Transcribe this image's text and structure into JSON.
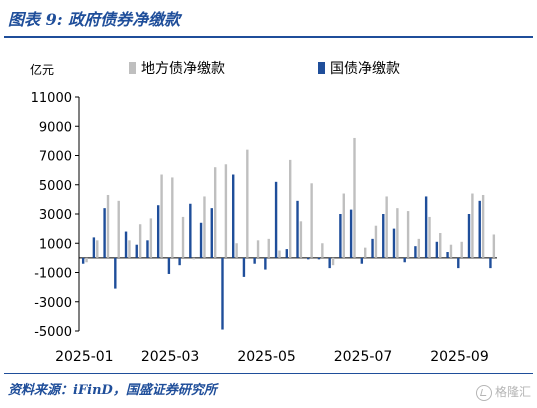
{
  "figure": {
    "title": "图表 9:  政府债券净缴款",
    "source": "资料来源：iFinD，国盛证券研究所",
    "watermark": "格隆汇"
  },
  "chart_data": {
    "type": "bar",
    "unit_label": "亿元",
    "legend_position": "top",
    "ylim": [
      -5000,
      11000
    ],
    "yticks": [
      11000,
      9000,
      7000,
      5000,
      3000,
      1000,
      -1000,
      -3000,
      -5000
    ],
    "xticks": [
      "2025-01",
      "2025-03",
      "2025-05",
      "2025-07",
      "2025-09"
    ],
    "grid": false,
    "categories": [
      "2025-01-06",
      "2025-01-13",
      "2025-01-20",
      "2025-01-27",
      "2025-02-03",
      "2025-02-10",
      "2025-02-17",
      "2025-02-24",
      "2025-03-03",
      "2025-03-10",
      "2025-03-17",
      "2025-03-24",
      "2025-03-31",
      "2025-04-07",
      "2025-04-14",
      "2025-04-21",
      "2025-04-28",
      "2025-05-05",
      "2025-05-12",
      "2025-05-19",
      "2025-05-26",
      "2025-06-02",
      "2025-06-09",
      "2025-06-16",
      "2025-06-23",
      "2025-06-30",
      "2025-07-07",
      "2025-07-14",
      "2025-07-21",
      "2025-07-28",
      "2025-08-04",
      "2025-08-11",
      "2025-08-18",
      "2025-08-25",
      "2025-09-01",
      "2025-09-08",
      "2025-09-15",
      "2025-09-22",
      "2025-09-29"
    ],
    "series": [
      {
        "name": "地方债净缴款",
        "color": "#bfbfbf",
        "values": [
          -300,
          1200,
          4300,
          3900,
          1200,
          2300,
          2700,
          5700,
          5500,
          2800,
          -100,
          4200,
          6200,
          6400,
          1000,
          7400,
          1200,
          1300,
          500,
          6700,
          2500,
          5100,
          1000,
          -500,
          4400,
          8200,
          700,
          2200,
          4200,
          3400,
          3200,
          1300,
          2800,
          1700,
          900,
          1100,
          4400,
          4300,
          1600
        ]
      },
      {
        "name": "国债净缴款",
        "color": "#1f4e9a",
        "values": [
          -400,
          1400,
          3400,
          -2100,
          1800,
          900,
          1200,
          3600,
          -1100,
          -500,
          3700,
          2400,
          3400,
          -4900,
          5700,
          -1300,
          -400,
          -800,
          5200,
          600,
          3900,
          -100,
          -100,
          -700,
          3000,
          3300,
          -400,
          1300,
          3000,
          2000,
          -300,
          800,
          4200,
          1100,
          400,
          -700,
          3000,
          3900,
          -700
        ]
      }
    ]
  }
}
